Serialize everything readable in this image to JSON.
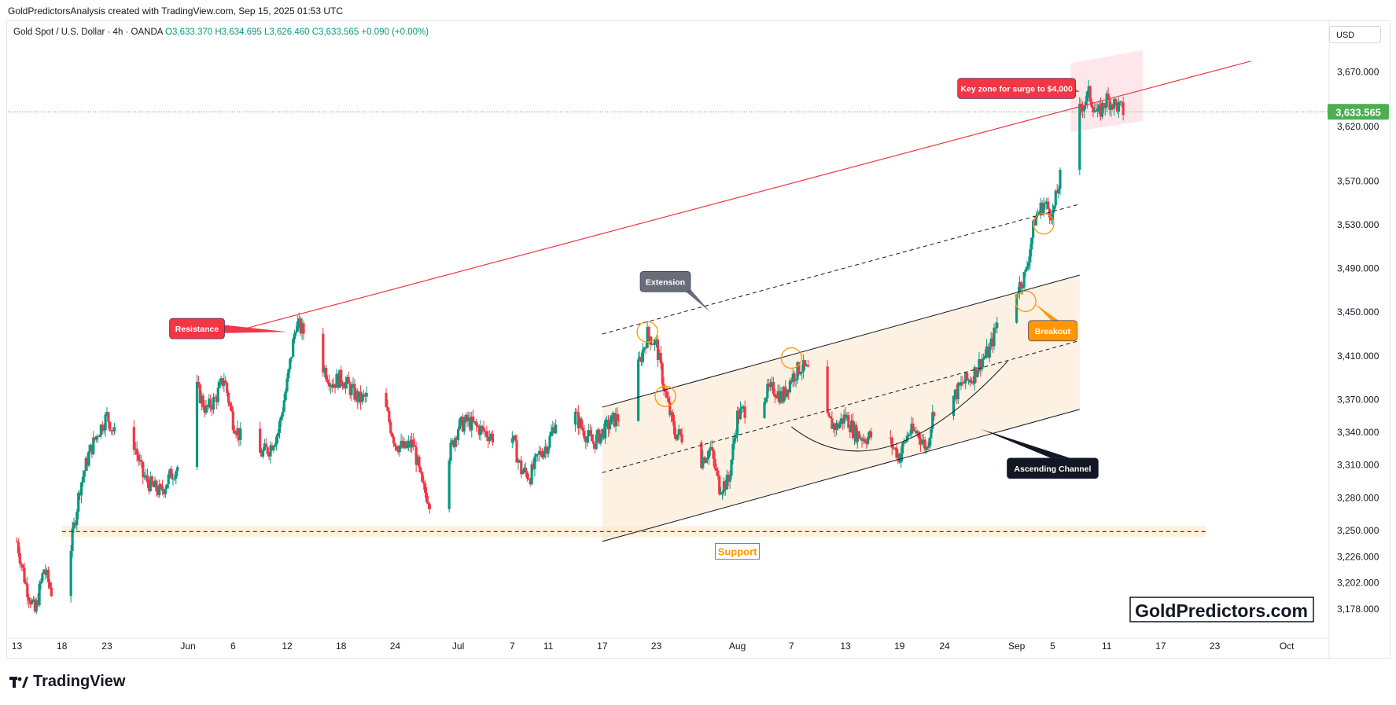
{
  "header": {
    "credit": "GoldPredictorsAnalysis created with TradingView.com, Sep 15, 2025 01:53 UTC",
    "symbol": "Gold Spot / U.S. Dollar · 4h · OANDA",
    "ohlc": "O3,633.370  H3,634.695  L3,626.460  C3,633.565  +0.090 (+0.00%)"
  },
  "toolbar": {
    "currency": "USD"
  },
  "footer": {
    "brand": "TradingView"
  },
  "colors": {
    "up": "#089981",
    "down": "#f23645",
    "resistance": "#f23645",
    "channel": "#131722",
    "support_zone": "#fde8c8",
    "channel_fill": "#fdf1e3",
    "price_label": "#4caf50"
  },
  "chart_data": {
    "type": "candlestick",
    "title": "",
    "ylim": [
      3160,
      3700
    ],
    "y_ticks": [
      "3,670.000",
      "3,620.000",
      "3,570.000",
      "3,530.000",
      "3,490.000",
      "3,450.000",
      "3,410.000",
      "3,370.000",
      "3,340.000",
      "3,310.000",
      "3,280.000",
      "3,250.000",
      "3,226.000",
      "3,202.000",
      "3,178.000"
    ],
    "y_tick_values": [
      3670,
      3620,
      3570,
      3530,
      3490,
      3450,
      3410,
      3370,
      3340,
      3310,
      3280,
      3250,
      3226,
      3202,
      3178
    ],
    "x_ticks": [
      "13",
      "18",
      "23",
      "Jun",
      "6",
      "12",
      "18",
      "24",
      "Jul",
      "7",
      "11",
      "17",
      "23",
      "Aug",
      "7",
      "13",
      "19",
      "24",
      "Sep",
      "5",
      "11",
      "17",
      "23",
      "Oct"
    ],
    "x_tick_dates": [
      "2025-05-13",
      "2025-05-18",
      "2025-05-23",
      "2025-06-01",
      "2025-06-06",
      "2025-06-12",
      "2025-06-18",
      "2025-06-24",
      "2025-07-01",
      "2025-07-07",
      "2025-07-11",
      "2025-07-17",
      "2025-07-23",
      "2025-08-01",
      "2025-08-07",
      "2025-08-13",
      "2025-08-19",
      "2025-08-24",
      "2025-09-01",
      "2025-09-05",
      "2025-09-11",
      "2025-09-17",
      "2025-09-23",
      "2025-10-01"
    ],
    "last_price": "3,633.565",
    "last_price_value": 3633.565,
    "price_path": [
      [
        "2025-05-13",
        3240
      ],
      [
        "2025-05-14",
        3200
      ],
      [
        "2025-05-15",
        3175
      ],
      [
        "2025-05-16",
        3215
      ],
      [
        "2025-05-17",
        3190
      ],
      [
        "2025-05-19",
        3235
      ],
      [
        "2025-05-20",
        3290
      ],
      [
        "2025-05-21",
        3320
      ],
      [
        "2025-05-22",
        3340
      ],
      [
        "2025-05-23",
        3355
      ],
      [
        "2025-05-24",
        3335
      ],
      [
        "2025-05-26",
        3330
      ],
      [
        "2025-05-27",
        3300
      ],
      [
        "2025-05-28",
        3290
      ],
      [
        "2025-05-29",
        3285
      ],
      [
        "2025-05-30",
        3300
      ],
      [
        "2025-05-31",
        3310
      ],
      [
        "2025-06-01",
        3315
      ],
      [
        "2025-06-02",
        3380
      ],
      [
        "2025-06-03",
        3360
      ],
      [
        "2025-06-04",
        3370
      ],
      [
        "2025-06-05",
        3390
      ],
      [
        "2025-06-06",
        3350
      ],
      [
        "2025-06-08",
        3315
      ],
      [
        "2025-06-10",
        3325
      ],
      [
        "2025-06-11",
        3340
      ],
      [
        "2025-06-12",
        3385
      ],
      [
        "2025-06-13",
        3440
      ],
      [
        "2025-06-14",
        3430
      ],
      [
        "2025-06-16",
        3400
      ],
      [
        "2025-06-17",
        3385
      ],
      [
        "2025-06-18",
        3390
      ],
      [
        "2025-06-20",
        3370
      ],
      [
        "2025-06-22",
        3375
      ],
      [
        "2025-06-23",
        3360
      ],
      [
        "2025-06-24",
        3330
      ],
      [
        "2025-06-25",
        3325
      ],
      [
        "2025-06-26",
        3330
      ],
      [
        "2025-06-27",
        3290
      ],
      [
        "2025-06-28",
        3275
      ],
      [
        "2025-06-29",
        3290
      ],
      [
        "2025-06-30",
        3320
      ],
      [
        "2025-07-01",
        3345
      ],
      [
        "2025-07-02",
        3350
      ],
      [
        "2025-07-03",
        3345
      ],
      [
        "2025-07-05",
        3335
      ],
      [
        "2025-07-06",
        3325
      ],
      [
        "2025-07-07",
        3335
      ],
      [
        "2025-07-08",
        3305
      ],
      [
        "2025-07-09",
        3300
      ],
      [
        "2025-07-10",
        3320
      ],
      [
        "2025-07-11",
        3330
      ],
      [
        "2025-07-12",
        3355
      ],
      [
        "2025-07-13",
        3360
      ],
      [
        "2025-07-14",
        3355
      ],
      [
        "2025-07-15",
        3340
      ],
      [
        "2025-07-16",
        3330
      ],
      [
        "2025-07-17",
        3340
      ],
      [
        "2025-07-18",
        3350
      ],
      [
        "2025-07-19",
        3355
      ],
      [
        "2025-07-20",
        3365
      ],
      [
        "2025-07-21",
        3400
      ],
      [
        "2025-07-22",
        3430
      ],
      [
        "2025-07-23",
        3420
      ],
      [
        "2025-07-24",
        3375
      ],
      [
        "2025-07-25",
        3340
      ],
      [
        "2025-07-26",
        3335
      ],
      [
        "2025-07-27",
        3320
      ],
      [
        "2025-07-28",
        3315
      ],
      [
        "2025-07-29",
        3325
      ],
      [
        "2025-07-30",
        3290
      ],
      [
        "2025-07-31",
        3295
      ],
      [
        "2025-08-01",
        3355
      ],
      [
        "2025-08-02",
        3362
      ],
      [
        "2025-08-04",
        3375
      ],
      [
        "2025-08-05",
        3380
      ],
      [
        "2025-08-06",
        3372
      ],
      [
        "2025-08-07",
        3390
      ],
      [
        "2025-08-08",
        3400
      ],
      [
        "2025-08-09",
        3395
      ],
      [
        "2025-08-11",
        3350
      ],
      [
        "2025-08-12",
        3345
      ],
      [
        "2025-08-13",
        3355
      ],
      [
        "2025-08-14",
        3340
      ],
      [
        "2025-08-15",
        3335
      ],
      [
        "2025-08-17",
        3338
      ],
      [
        "2025-08-18",
        3330
      ],
      [
        "2025-08-19",
        3318
      ],
      [
        "2025-08-20",
        3340
      ],
      [
        "2025-08-21",
        3340
      ],
      [
        "2025-08-22",
        3325
      ],
      [
        "2025-08-23",
        3370
      ],
      [
        "2025-08-25",
        3372
      ],
      [
        "2025-08-26",
        3385
      ],
      [
        "2025-08-27",
        3390
      ],
      [
        "2025-08-28",
        3405
      ],
      [
        "2025-08-29",
        3415
      ],
      [
        "2025-08-30",
        3445
      ],
      [
        "2025-09-01",
        3470
      ],
      [
        "2025-09-02",
        3485
      ],
      [
        "2025-09-03",
        3535
      ],
      [
        "2025-09-04",
        3550
      ],
      [
        "2025-09-05",
        3540
      ],
      [
        "2025-09-06",
        3580
      ],
      [
        "2025-09-07",
        3590
      ],
      [
        "2025-09-08",
        3635
      ],
      [
        "2025-09-09",
        3650
      ],
      [
        "2025-09-10",
        3630
      ],
      [
        "2025-09-11",
        3645
      ],
      [
        "2025-09-12",
        3640
      ],
      [
        "2025-09-13",
        3633
      ]
    ],
    "annotations": [
      {
        "label": "Key zone for surge to $4,000",
        "color": "#f23645",
        "date": "2025-09-01",
        "y": 3655
      },
      {
        "label": "Resistance",
        "color": "#f23645",
        "date": "2025-06-02",
        "y": 3435
      },
      {
        "label": "Extension",
        "color": "#6a6d78",
        "date": "2025-07-24",
        "y": 3478
      },
      {
        "label": "Breakout",
        "color": "#ff9800",
        "date": "2025-09-05",
        "y": 3433
      },
      {
        "label": "Ascending Channel",
        "color": "#131722",
        "date": "2025-09-05",
        "y": 3307
      },
      {
        "label": "Support",
        "color": "#ff9800",
        "date": "2025-08-01",
        "y": 3231
      }
    ],
    "resistance_line": [
      [
        "2025-06-06",
        3432
      ],
      [
        "2025-09-27",
        3680
      ]
    ],
    "channel_lower": [
      [
        "2025-07-17",
        3240
      ],
      [
        "2025-09-08",
        3361
      ]
    ],
    "channel_upper": [
      [
        "2025-07-17",
        3363
      ],
      [
        "2025-09-08",
        3484
      ]
    ],
    "channel_mid": [
      [
        "2025-07-17",
        3303
      ],
      [
        "2025-09-08",
        3424
      ]
    ],
    "extension_line": [
      [
        "2025-07-17",
        3430
      ],
      [
        "2025-09-08",
        3549
      ]
    ],
    "support_level": 3249,
    "watermark": "GoldPredictors.com"
  }
}
